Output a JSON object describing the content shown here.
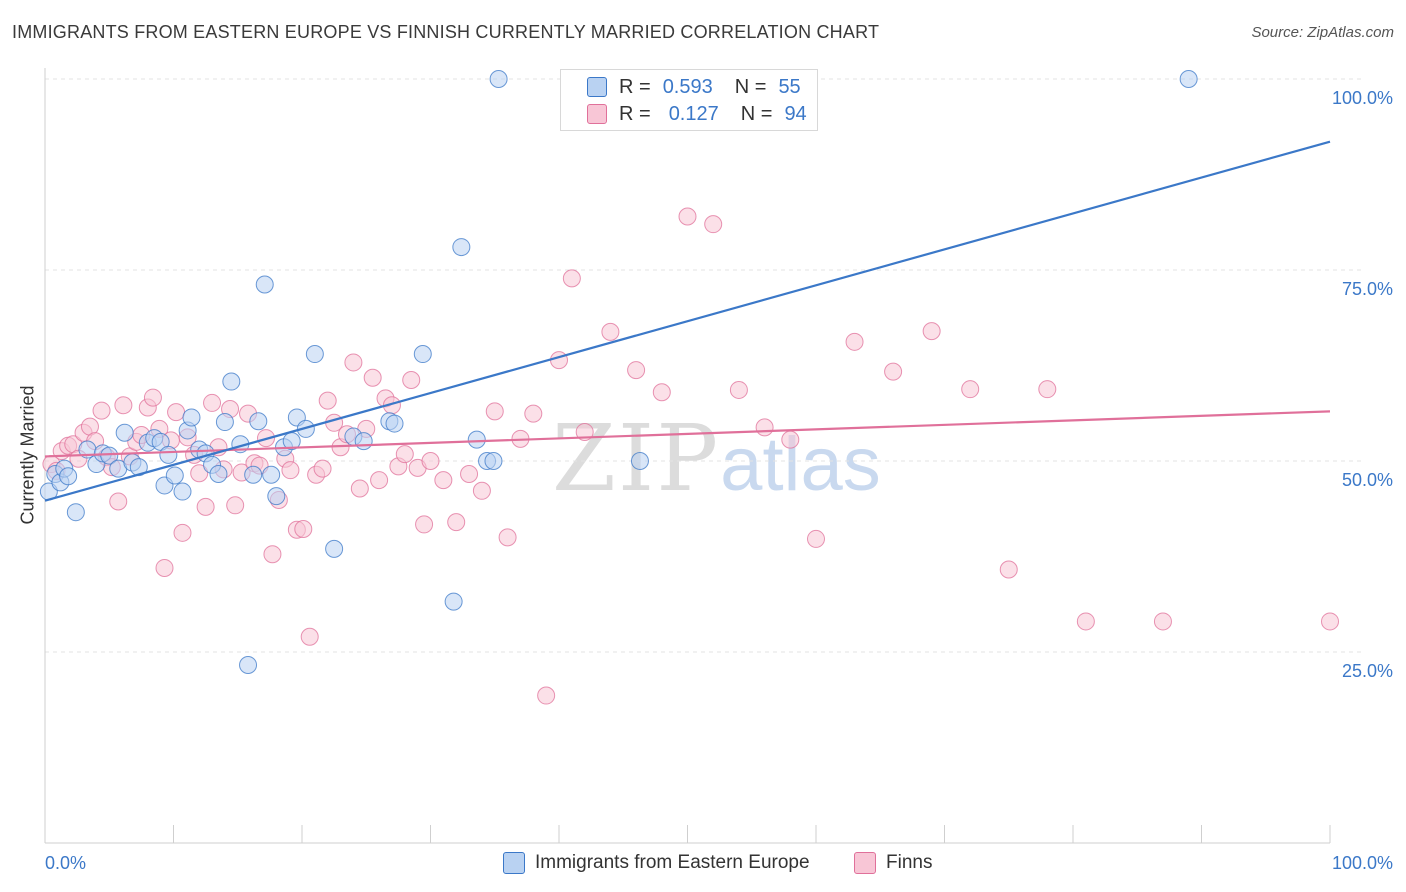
{
  "header": {
    "title": "IMMIGRANTS FROM EASTERN EUROPE VS FINNISH CURRENTLY MARRIED CORRELATION CHART",
    "source": "Source: ZipAtlas.com"
  },
  "watermark": {
    "zip": "ZIP",
    "atlas": "atlas"
  },
  "legend": {
    "rows": [
      {
        "r_label": "R =",
        "r_value": "0.593",
        "n_label": "N =",
        "n_value": "55",
        "color": "#8ab4ea"
      },
      {
        "r_label": "R =",
        "r_value": "0.127",
        "n_label": "N =",
        "n_value": "94",
        "color": "#f4a7c0"
      }
    ]
  },
  "bottom_legend": {
    "series1": "Immigrants from Eastern Europe",
    "series2": "Finns"
  },
  "chart_data": {
    "type": "scatter",
    "title": "IMMIGRANTS FROM EASTERN EUROPE VS FINNISH CURRENTLY MARRIED CORRELATION CHART",
    "xlabel": "",
    "ylabel": "Currently Married",
    "xlim": [
      0,
      100
    ],
    "ylim": [
      0,
      100
    ],
    "x_tick_labels": [
      "0.0%",
      "100.0%"
    ],
    "y_tick_values": [
      25,
      50,
      75,
      100
    ],
    "y_tick_labels": [
      "25.0%",
      "50.0%",
      "75.0%",
      "100.0%"
    ],
    "grid": true,
    "legend_position": "top-center",
    "colors": {
      "blue": "#3b78c8",
      "blue_fill": "#b9d2f2",
      "pink": "#e0709a",
      "pink_fill": "#f8c6d6",
      "axis_label": "#3b78c8"
    },
    "series": [
      {
        "name": "Immigrants from Eastern Europe",
        "color": "#3b78c8",
        "trend": {
          "x": [
            0,
            100
          ],
          "y": [
            44.8,
            91.8
          ]
        },
        "x": [
          0.3,
          0.8,
          1.2,
          1.5,
          1.8,
          2.4,
          3.3,
          4.0,
          4.5,
          5.0,
          5.7,
          6.2,
          6.8,
          7.3,
          8.0,
          8.5,
          9.0,
          9.3,
          9.6,
          10.1,
          10.7,
          11.1,
          11.4,
          12.0,
          12.5,
          13.0,
          13.5,
          14.0,
          14.5,
          15.2,
          15.8,
          16.2,
          16.6,
          17.1,
          17.6,
          18.0,
          18.6,
          19.2,
          19.6,
          20.3,
          21.0,
          22.5,
          24.0,
          24.8,
          26.8,
          27.2,
          29.4,
          31.8,
          32.4,
          33.6,
          34.4,
          34.9,
          35.3,
          46.3,
          89.0
        ],
        "y": [
          46.0,
          48.3,
          47.2,
          49.0,
          48.0,
          43.3,
          51.5,
          49.6,
          51.0,
          50.7,
          49.0,
          53.7,
          49.8,
          49.2,
          52.4,
          53.0,
          52.5,
          46.8,
          50.8,
          48.1,
          46.0,
          54.0,
          55.7,
          51.5,
          51.0,
          49.5,
          48.3,
          55.1,
          60.4,
          52.2,
          23.3,
          48.2,
          55.2,
          73.1,
          48.2,
          45.4,
          51.8,
          52.6,
          55.7,
          54.2,
          64.0,
          38.5,
          53.2,
          52.6,
          55.2,
          54.9,
          64.0,
          31.6,
          78.0,
          52.8,
          50.0,
          50.0,
          100.0,
          50.0,
          100.0
        ]
      },
      {
        "name": "Finns",
        "color": "#e0709a",
        "trend": {
          "x": [
            0,
            100
          ],
          "y": [
            50.6,
            56.5
          ]
        },
        "x": [
          0.5,
          0.9,
          1.3,
          1.8,
          2.2,
          2.6,
          3.0,
          3.5,
          3.9,
          4.4,
          4.8,
          5.2,
          5.7,
          6.1,
          6.6,
          7.1,
          7.5,
          8.0,
          8.4,
          8.9,
          9.3,
          9.8,
          10.2,
          10.7,
          11.1,
          11.6,
          12.0,
          12.5,
          13.0,
          13.5,
          13.9,
          14.4,
          14.8,
          15.3,
          15.8,
          16.3,
          16.7,
          17.2,
          17.7,
          18.2,
          18.7,
          19.1,
          19.6,
          20.1,
          20.6,
          21.1,
          21.6,
          22.0,
          22.5,
          23.0,
          23.5,
          24.0,
          24.5,
          25.0,
          25.5,
          26.0,
          26.5,
          27.0,
          27.5,
          28.0,
          28.5,
          29.0,
          29.5,
          30.0,
          31.0,
          32.0,
          33.0,
          34.0,
          35.0,
          36.0,
          37.0,
          38.0,
          39.0,
          40.0,
          41.0,
          42.0,
          44.0,
          46.0,
          48.0,
          50.0,
          52.0,
          54.0,
          56.0,
          58.0,
          60.0,
          63.0,
          66.0,
          69.0,
          72.0,
          75.0,
          78.0,
          81.0,
          87.0,
          100.0
        ],
        "y": [
          49.6,
          48.7,
          51.3,
          52.0,
          52.2,
          50.3,
          53.7,
          54.5,
          52.6,
          56.6,
          50.5,
          49.2,
          44.7,
          57.3,
          50.6,
          52.5,
          53.4,
          57.0,
          58.3,
          54.2,
          36.0,
          52.7,
          56.4,
          40.6,
          53.1,
          50.8,
          48.4,
          44.0,
          57.6,
          51.8,
          48.9,
          56.8,
          44.2,
          48.5,
          56.2,
          49.7,
          49.4,
          53.0,
          37.8,
          44.9,
          50.3,
          48.8,
          41.0,
          41.1,
          27.0,
          48.2,
          49.0,
          57.9,
          55.0,
          51.8,
          53.5,
          62.9,
          46.4,
          54.2,
          60.9,
          47.5,
          58.2,
          57.3,
          49.3,
          50.9,
          60.6,
          49.1,
          41.7,
          50.0,
          47.5,
          42.0,
          48.3,
          46.1,
          56.5,
          40.0,
          52.9,
          56.2,
          19.3,
          63.2,
          73.9,
          53.8,
          66.9,
          61.9,
          59.0,
          82.0,
          81.0,
          59.3,
          54.4,
          52.8,
          39.8,
          65.6,
          61.7,
          67.0,
          59.4,
          35.8,
          59.4,
          29.0,
          29.0,
          29.0
        ]
      }
    ]
  }
}
